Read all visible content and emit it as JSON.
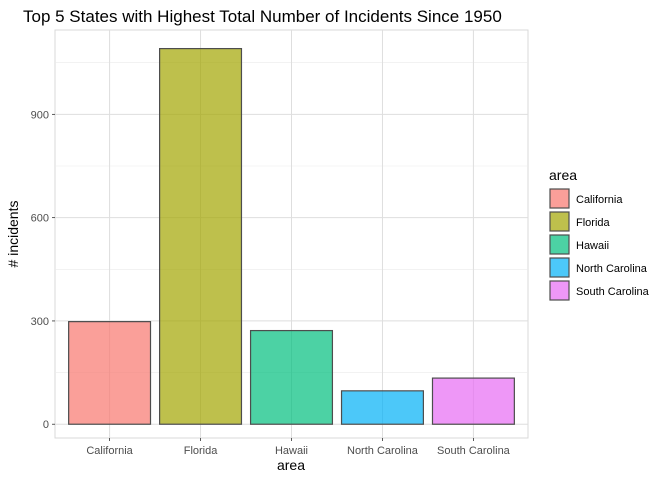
{
  "chart_data": {
    "type": "bar",
    "title": "Top 5 States with Highest Total Number of Incidents Since 1950",
    "xlabel": "area",
    "ylabel": "# incidents",
    "categories": [
      "California",
      "Florida",
      "Hawaii",
      "North Carolina",
      "South Carolina"
    ],
    "values": [
      298,
      1091,
      272,
      97,
      134
    ],
    "colors": [
      "#F8766D",
      "#A3A500",
      "#00BF7D",
      "#00B0F6",
      "#E76BF3"
    ],
    "ylim": [
      -40,
      1145
    ],
    "yticks": [
      0,
      300,
      600,
      900
    ],
    "ytick_labels": [
      "0",
      "300",
      "600",
      "900"
    ],
    "grid": true,
    "legend": {
      "title": "area",
      "position": "right",
      "entries": [
        "California",
        "Florida",
        "Hawaii",
        "North Carolina",
        "South Carolina"
      ]
    }
  }
}
